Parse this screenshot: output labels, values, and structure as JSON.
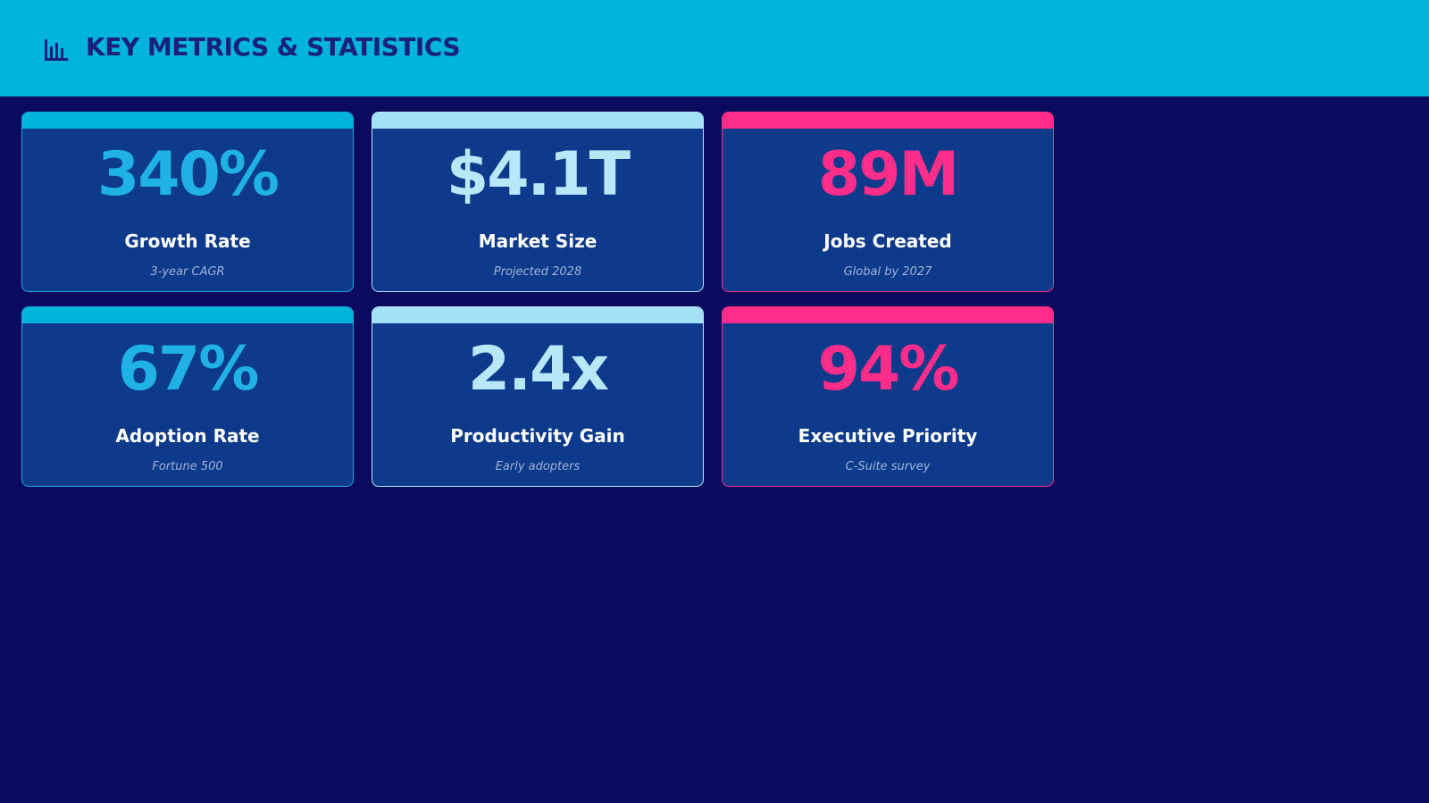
{
  "header": {
    "title": "KEY METRICS & STATISTICS"
  },
  "cards": [
    {
      "value": "340%",
      "label": "Growth Rate",
      "note": "3-year CAGR"
    },
    {
      "value": "$4.1T",
      "label": "Market Size",
      "note": "Projected 2028"
    },
    {
      "value": "89M",
      "label": "Jobs Created",
      "note": "Global by 2027"
    },
    {
      "value": "67%",
      "label": "Adoption Rate",
      "note": "Fortune 500"
    },
    {
      "value": "2.4x",
      "label": "Productivity Gain",
      "note": "Early adopters"
    },
    {
      "value": "94%",
      "label": "Executive Priority",
      "note": "C-Suite survey"
    }
  ]
}
